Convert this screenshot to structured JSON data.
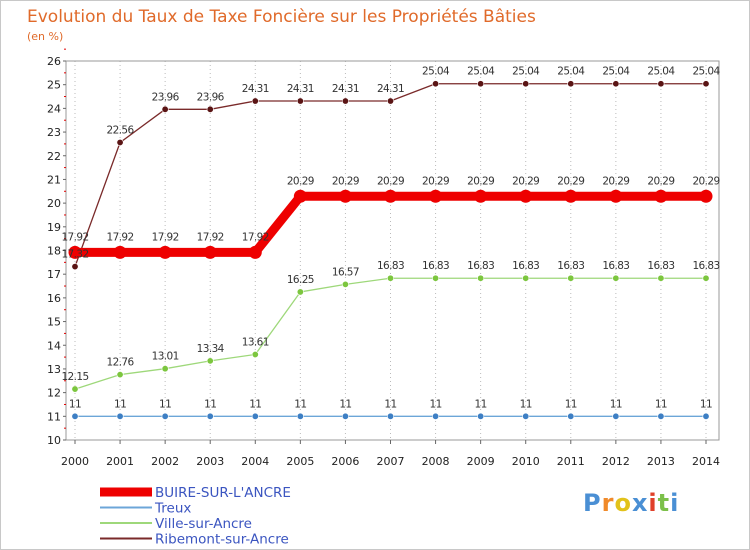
{
  "chart_data": {
    "type": "line",
    "title": "Evolution du Taux de Taxe Foncière sur les Propriétés Bâties",
    "subtitle": "(en %)",
    "x": [
      "2000",
      "2001",
      "2002",
      "2003",
      "2004",
      "2005",
      "2006",
      "2007",
      "2008",
      "2009",
      "2010",
      "2011",
      "2012",
      "2013",
      "2014"
    ],
    "ylim": [
      10,
      26
    ],
    "yticks": [
      "10",
      "11",
      "12",
      "13",
      "14",
      "15",
      "16",
      "17",
      "18",
      "19",
      "20",
      "21",
      "22",
      "23",
      "24",
      "25",
      "26"
    ],
    "grid": "vertical dotted",
    "legend_position": "bottom-left",
    "series": [
      {
        "name": "Ribemont-sur-Ancre",
        "color": "#7a2a2a",
        "marker": "#5a1414",
        "values": [
          17.32,
          22.56,
          23.96,
          23.96,
          24.31,
          24.31,
          24.31,
          24.31,
          25.04,
          25.04,
          25.04,
          25.04,
          25.04,
          25.04,
          25.04
        ],
        "labels": [
          "17.32",
          "22.56",
          "23.96",
          "23.96",
          "24.31",
          "24.31",
          "24.31",
          "24.31",
          "25.04",
          "25.04",
          "25.04",
          "25.04",
          "25.04",
          "25.04",
          "25.04"
        ]
      },
      {
        "name": "BUIRE-SUR-L'ANCRE",
        "color": "#ee0000",
        "marker": "#ee0000",
        "values": [
          17.92,
          17.92,
          17.92,
          17.92,
          17.92,
          20.29,
          20.29,
          20.29,
          20.29,
          20.29,
          20.29,
          20.29,
          20.29,
          20.29,
          20.29
        ],
        "labels": [
          "17.92",
          "17.92",
          "17.92",
          "17.92",
          "17.92",
          "20.29",
          "20.29",
          "20.29",
          "20.29",
          "20.29",
          "20.29",
          "20.29",
          "20.29",
          "20.29",
          "20.29"
        ]
      },
      {
        "name": "Ville-sur-Ancre",
        "color": "#9ed87a",
        "marker": "#7cc63e",
        "values": [
          12.15,
          12.76,
          13.01,
          13.34,
          13.61,
          16.25,
          16.57,
          16.83,
          16.83,
          16.83,
          16.83,
          16.83,
          16.83,
          16.83,
          16.83
        ],
        "labels": [
          "12.15",
          "12.76",
          "13.01",
          "13.34",
          "13.61",
          "16.25",
          "16.57",
          "16.83",
          "16.83",
          "16.83",
          "16.83",
          "16.83",
          "16.83",
          "16.83",
          "16.83"
        ]
      },
      {
        "name": "Treux",
        "color": "#6ca6d8",
        "marker": "#3d7fc4",
        "values": [
          11,
          11,
          11,
          11,
          11,
          11,
          11,
          11,
          11,
          11,
          11,
          11,
          11,
          11,
          11
        ],
        "labels": [
          "11",
          "11",
          "11",
          "11",
          "11",
          "11",
          "11",
          "11",
          "11",
          "11",
          "11",
          "11",
          "11",
          "11",
          "11"
        ]
      }
    ],
    "legend": [
      "BUIRE-SUR-L'ANCRE",
      "Treux",
      "Ville-sur-Ancre",
      "Ribemont-sur-Ancre"
    ]
  },
  "branding": {
    "logo_letters": [
      "P",
      "r",
      "o",
      "x",
      "i",
      "t",
      "i"
    ],
    "logo_colors": [
      "#4a8fd4",
      "#f08a2a",
      "#e2c21a",
      "#4a8fd4",
      "#e0402a",
      "#7cc04a",
      "#4a8fd4"
    ]
  }
}
